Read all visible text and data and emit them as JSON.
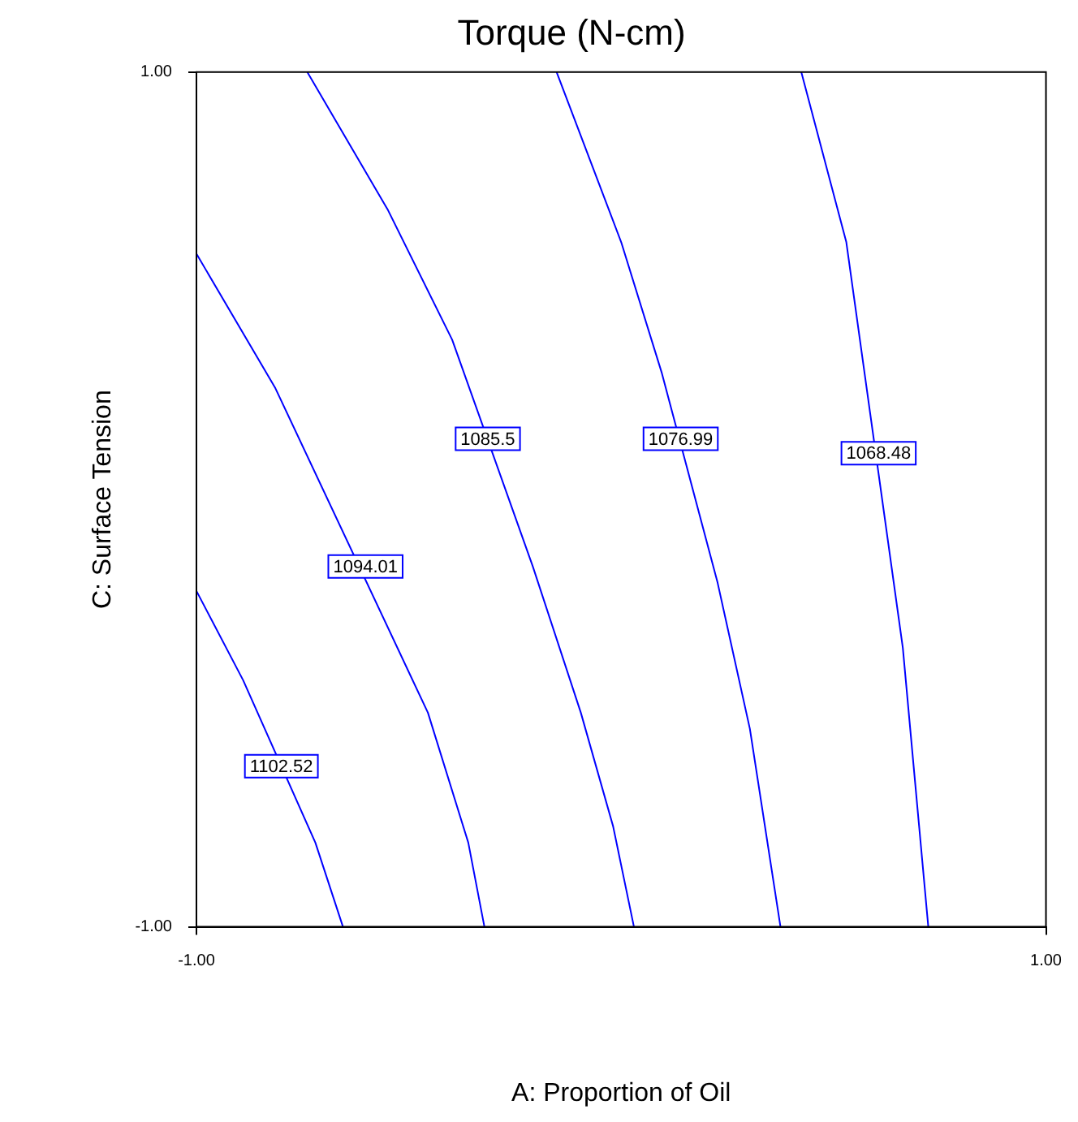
{
  "chart_data": {
    "type": "line",
    "title": "Torque (N-cm)",
    "xlabel": "A: Proportion of Oil",
    "ylabel": "C: Surface Tension",
    "xlim": [
      -1,
      1
    ],
    "ylim": [
      -1,
      1
    ],
    "xticks": [
      {
        "value": -1,
        "label": "-1.00"
      },
      {
        "value": 1,
        "label": "1.00"
      }
    ],
    "yticks": [
      {
        "value": -1,
        "label": "-1.00"
      },
      {
        "value": 1,
        "label": "1.00"
      }
    ],
    "grid": false,
    "legend": false,
    "marker": "none",
    "line_style": "solid",
    "series": [
      {
        "color": "#0000ff",
        "x": [
          -1,
          -0.89,
          -0.72,
          -0.655
        ],
        "values": [
          -0.214,
          -0.423,
          -0.803,
          -1
        ]
      },
      {
        "color": "#0000ff",
        "x": [
          -1,
          -0.814,
          -0.455,
          -0.36,
          -0.322
        ],
        "values": [
          0.575,
          0.26,
          -0.499,
          -0.803,
          -1
        ]
      },
      {
        "color": "#0000ff",
        "x": [
          -0.739,
          -0.549,
          -0.398,
          -0.208,
          -0.095,
          -0.019,
          0.03
        ],
        "values": [
          1,
          0.677,
          0.374,
          -0.157,
          -0.499,
          -0.765,
          -1
        ]
      },
      {
        "color": "#0000ff",
        "x": [
          -0.152,
          0,
          0.095,
          0.227,
          0.303,
          0.375
        ],
        "values": [
          1,
          0.602,
          0.298,
          -0.195,
          -0.537,
          -1
        ]
      },
      {
        "color": "#0000ff",
        "x": [
          0.424,
          0.53,
          0.663,
          0.723
        ],
        "values": [
          1,
          0.602,
          -0.347,
          -1
        ]
      }
    ],
    "annotations": [
      {
        "text": "1102.52",
        "x": -0.8,
        "y": -0.624
      },
      {
        "text": "1094.01",
        "x": -0.602,
        "y": -0.157
      },
      {
        "text": "1085.5",
        "x": -0.314,
        "y": 0.142
      },
      {
        "text": "1076.99",
        "x": 0.14,
        "y": 0.142
      },
      {
        "text": "1068.48",
        "x": 0.606,
        "y": 0.108
      }
    ]
  }
}
